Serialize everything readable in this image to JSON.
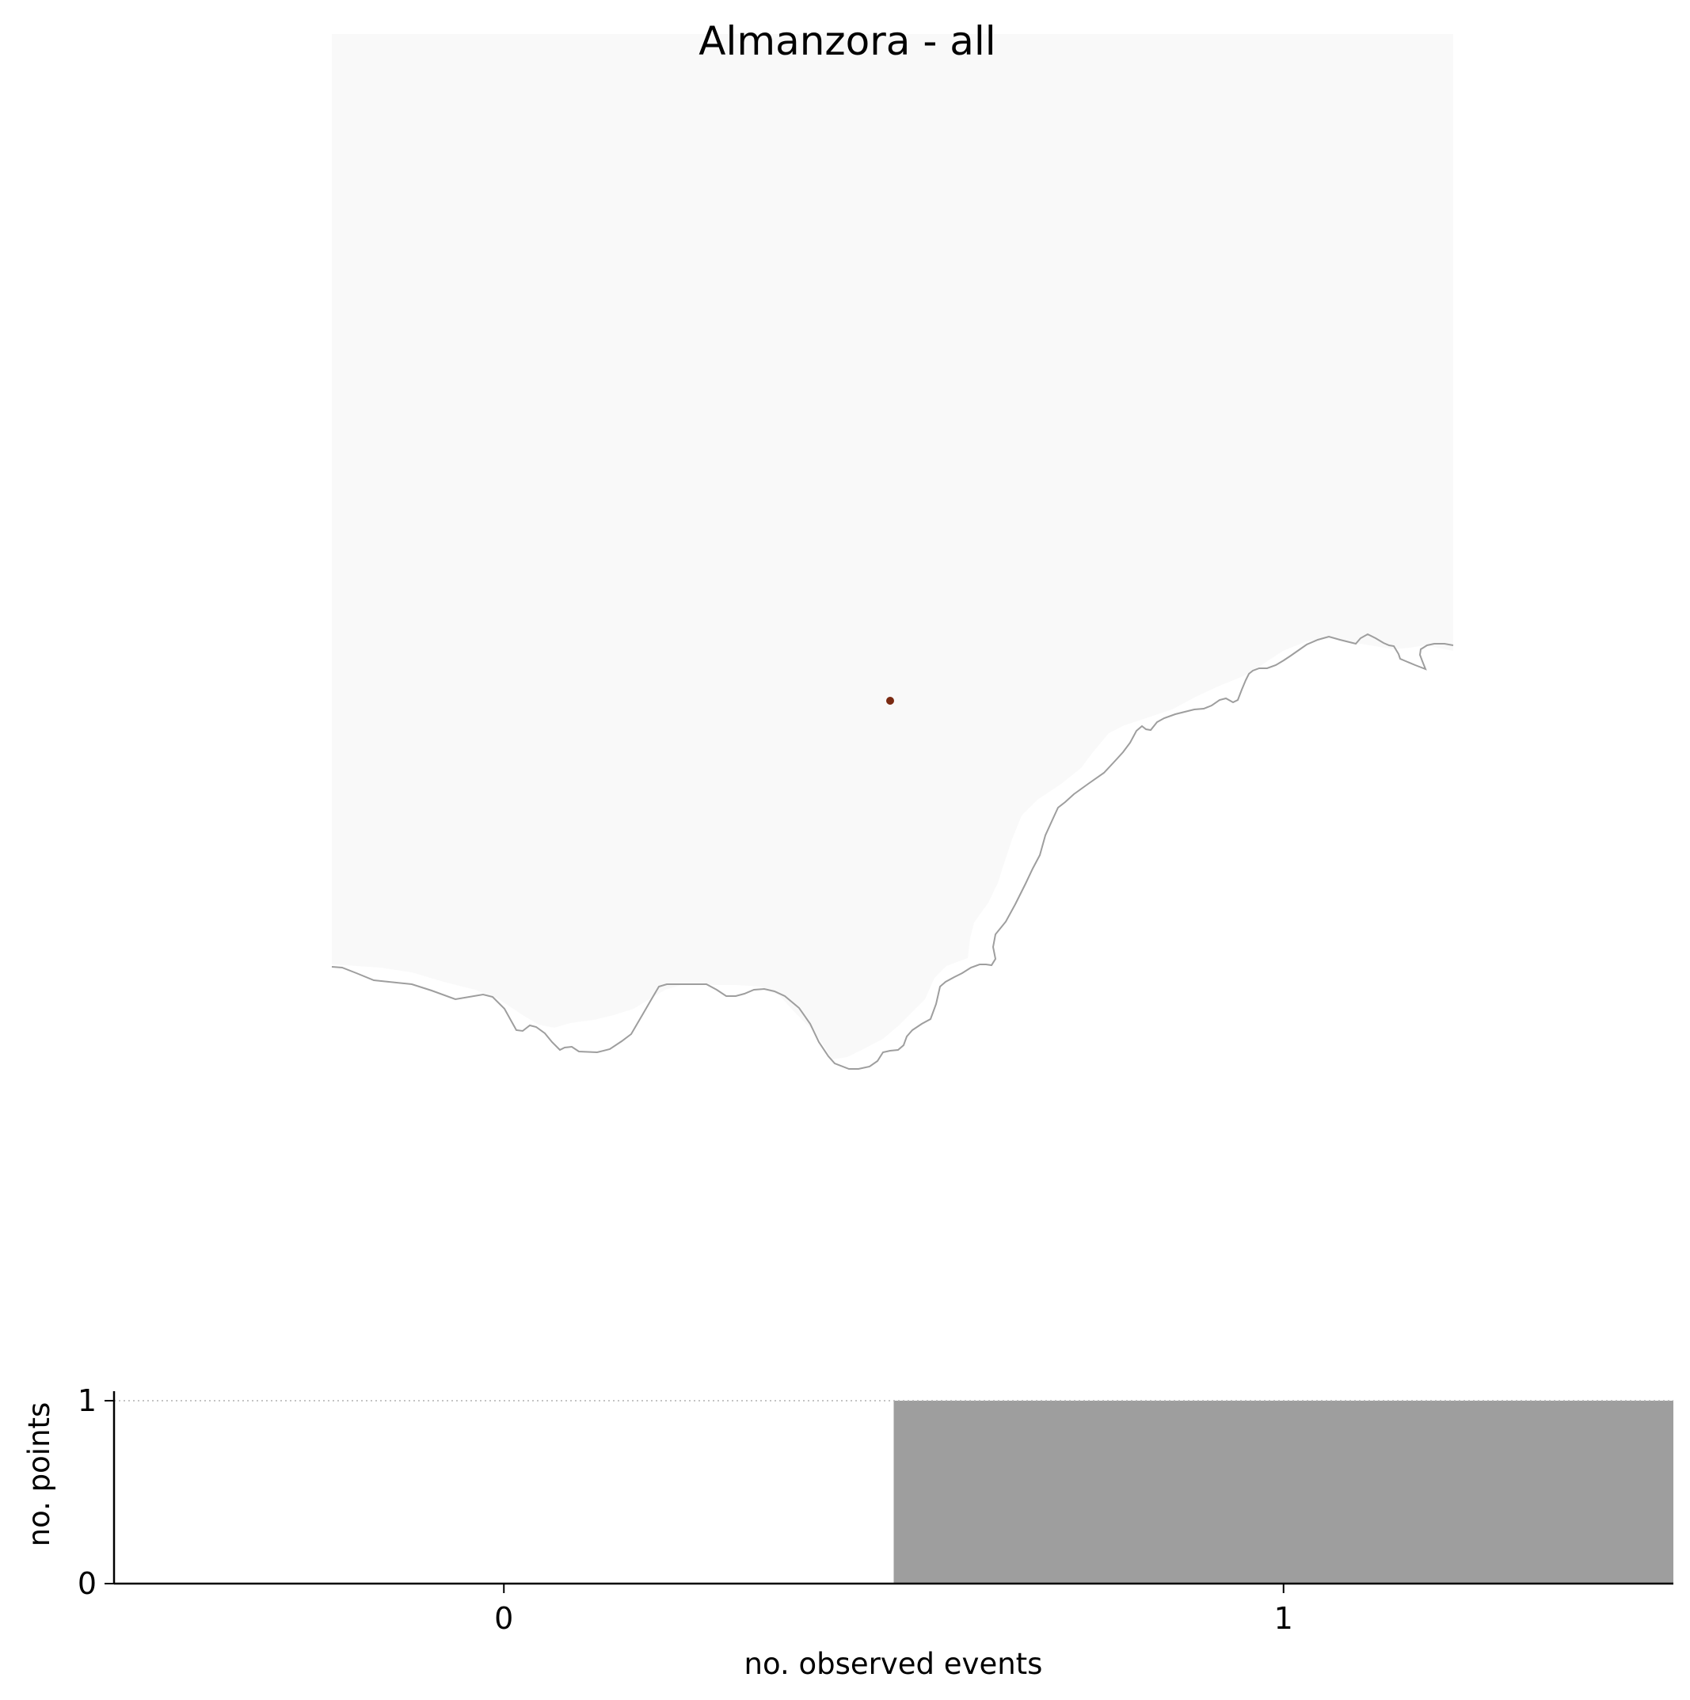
{
  "map": {
    "title": "Almanzora - all",
    "land_color": "#f9f9f9",
    "coastline_color": "#9e9e9e",
    "point_color": "#7a2a12",
    "observation_points": [
      {
        "events": 1
      }
    ]
  },
  "chart_data": {
    "type": "bar",
    "categories": [
      "0",
      "1"
    ],
    "values": [
      0,
      1
    ],
    "xlabel": "no. observed events",
    "ylabel": "no. points",
    "ylim": [
      0,
      1
    ],
    "yticks": [
      "0",
      "1"
    ],
    "xticks": [
      "0",
      "1"
    ],
    "bar_colors": [
      "#ffffff",
      "#9e9e9e"
    ],
    "reference_line": {
      "y": 1,
      "style": "dotted"
    }
  }
}
